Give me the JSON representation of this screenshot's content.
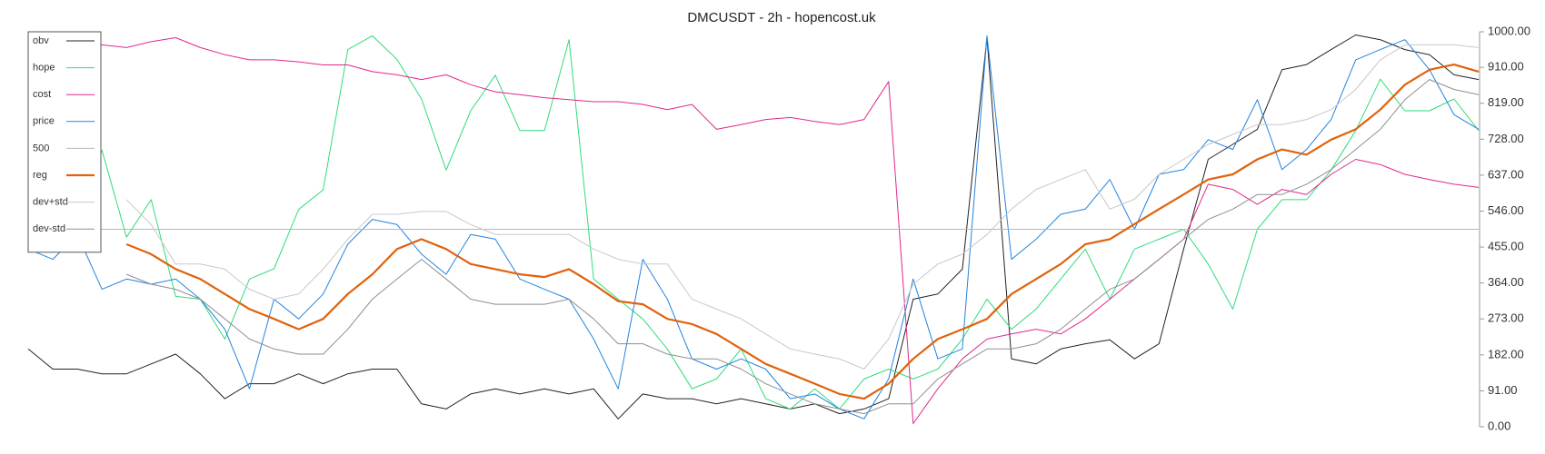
{
  "chart_data": {
    "type": "line",
    "title": "DMCUSDT - 2h - hopencost.uk",
    "legend": "upper left",
    "y_axis_side": "right",
    "ylim": [
      0,
      1000
    ],
    "yticks": [
      {
        "value": 0,
        "label": "0.00"
      },
      {
        "value": 91,
        "label": "91.00"
      },
      {
        "value": 182,
        "label": "182.00"
      },
      {
        "value": 273,
        "label": "273.00"
      },
      {
        "value": 364,
        "label": "364.00"
      },
      {
        "value": 455,
        "label": "455.00"
      },
      {
        "value": 546,
        "label": "546.00"
      },
      {
        "value": 637,
        "label": "637.00"
      },
      {
        "value": 728,
        "label": "728.00"
      },
      {
        "value": 819,
        "label": "819.00"
      },
      {
        "value": 910,
        "label": "910.00"
      },
      {
        "value": 1000,
        "label": "1000.00"
      }
    ],
    "series": [
      {
        "name": "obv",
        "color": "#222222",
        "width": 1,
        "values": [
          197,
          146,
          146,
          134,
          134,
          159,
          184,
          134,
          71,
          109,
          109,
          134,
          109,
          134,
          146,
          146,
          58,
          45,
          83,
          96,
          83,
          96,
          83,
          96,
          20,
          83,
          71,
          71,
          58,
          71,
          58,
          45,
          58,
          33,
          45,
          71,
          323,
          336,
          399,
          985,
          172,
          159,
          197,
          210,
          220,
          172,
          210,
          450,
          677,
          715,
          753,
          904,
          917,
          955,
          992,
          980,
          955,
          942,
          891,
          879
        ]
      },
      {
        "name": "hope",
        "color": "#2fdc78",
        "width": 1,
        "values": [
          480,
          560,
          520,
          700,
          480,
          575,
          330,
          323,
          222,
          374,
          400,
          550,
          600,
          955,
          990,
          930,
          830,
          650,
          800,
          890,
          750,
          750,
          980,
          374,
          323,
          273,
          197,
          96,
          121,
          197,
          71,
          45,
          96,
          45,
          121,
          146,
          121,
          146,
          222,
          323,
          247,
          298,
          374,
          450,
          323,
          450,
          475,
          500,
          412,
          298,
          500,
          575,
          575,
          650,
          750,
          880,
          800,
          800,
          830,
          750
        ]
      },
      {
        "name": "cost",
        "color": "#e0288c",
        "width": 1,
        "values": [
          null,
          null,
          955,
          967,
          960,
          975,
          985,
          960,
          942,
          929,
          929,
          924,
          916,
          916,
          899,
          891,
          879,
          891,
          866,
          848,
          841,
          833,
          828,
          823,
          823,
          816,
          803,
          816,
          753,
          765,
          778,
          783,
          773,
          765,
          778,
          874,
          8,
          96,
          172,
          222,
          235,
          247,
          235,
          273,
          323,
          374,
          424,
          475,
          614,
          601,
          563,
          601,
          588,
          639,
          677,
          664,
          639,
          626,
          614,
          606
        ]
      },
      {
        "name": "price",
        "color": "#2283e0",
        "width": 1,
        "values": [
          450,
          424,
          487,
          348,
          374,
          361,
          374,
          323,
          247,
          96,
          323,
          273,
          336,
          462,
          525,
          512,
          437,
          386,
          487,
          475,
          374,
          348,
          323,
          222,
          96,
          424,
          323,
          172,
          146,
          172,
          146,
          71,
          83,
          45,
          20,
          121,
          374,
          172,
          197,
          990,
          424,
          475,
          538,
          551,
          626,
          500,
          639,
          651,
          727,
          702,
          828,
          651,
          702,
          778,
          929,
          955,
          980,
          904,
          790,
          753
        ]
      },
      {
        "name": "500",
        "color": "#b8b8b8",
        "width": 1,
        "values": [
          500,
          500,
          500,
          500,
          500,
          500,
          500,
          500,
          500,
          500,
          500,
          500,
          500,
          500,
          500,
          500,
          500,
          500,
          500,
          500,
          500,
          500,
          500,
          500,
          500,
          500,
          500,
          500,
          500,
          500,
          500,
          500,
          500,
          500,
          500,
          500,
          500,
          500,
          500,
          500,
          500,
          500,
          500,
          500,
          500,
          500,
          500,
          500,
          500,
          500,
          500,
          500,
          500,
          500,
          500,
          500,
          500,
          500,
          500,
          500
        ]
      },
      {
        "name": "reg",
        "color": "#e0620c",
        "width": 2.2,
        "values": [
          null,
          null,
          null,
          null,
          462,
          437,
          399,
          374,
          336,
          298,
          273,
          247,
          273,
          336,
          386,
          450,
          475,
          450,
          412,
          399,
          386,
          379,
          399,
          361,
          318,
          310,
          273,
          260,
          235,
          197,
          159,
          134,
          109,
          83,
          71,
          109,
          172,
          222,
          247,
          273,
          336,
          374,
          412,
          462,
          475,
          513,
          551,
          588,
          626,
          639,
          677,
          702,
          689,
          727,
          753,
          803,
          866,
          904,
          917,
          899
        ]
      },
      {
        "name": "dev+std",
        "color": "#c8c8c8",
        "width": 1,
        "values": [
          null,
          null,
          null,
          null,
          575,
          512,
          412,
          412,
          399,
          348,
          323,
          336,
          399,
          475,
          538,
          538,
          545,
          545,
          512,
          487,
          487,
          487,
          487,
          450,
          424,
          412,
          412,
          323,
          298,
          273,
          235,
          197,
          184,
          172,
          146,
          222,
          361,
          412,
          437,
          487,
          551,
          601,
          626,
          651,
          551,
          576,
          639,
          677,
          715,
          740,
          765,
          765,
          778,
          803,
          854,
          929,
          967,
          967,
          967,
          960
        ]
      },
      {
        "name": "dev-std",
        "color": "#8f8f8f",
        "width": 1,
        "values": [
          null,
          null,
          null,
          null,
          386,
          361,
          348,
          323,
          273,
          222,
          197,
          184,
          184,
          247,
          323,
          374,
          424,
          374,
          323,
          310,
          310,
          310,
          323,
          273,
          210,
          210,
          184,
          172,
          172,
          146,
          109,
          83,
          58,
          45,
          33,
          58,
          58,
          121,
          159,
          197,
          197,
          210,
          247,
          298,
          348,
          374,
          424,
          475,
          525,
          551,
          588,
          588,
          614,
          651,
          702,
          753,
          828,
          879,
          854,
          841
        ]
      }
    ]
  }
}
